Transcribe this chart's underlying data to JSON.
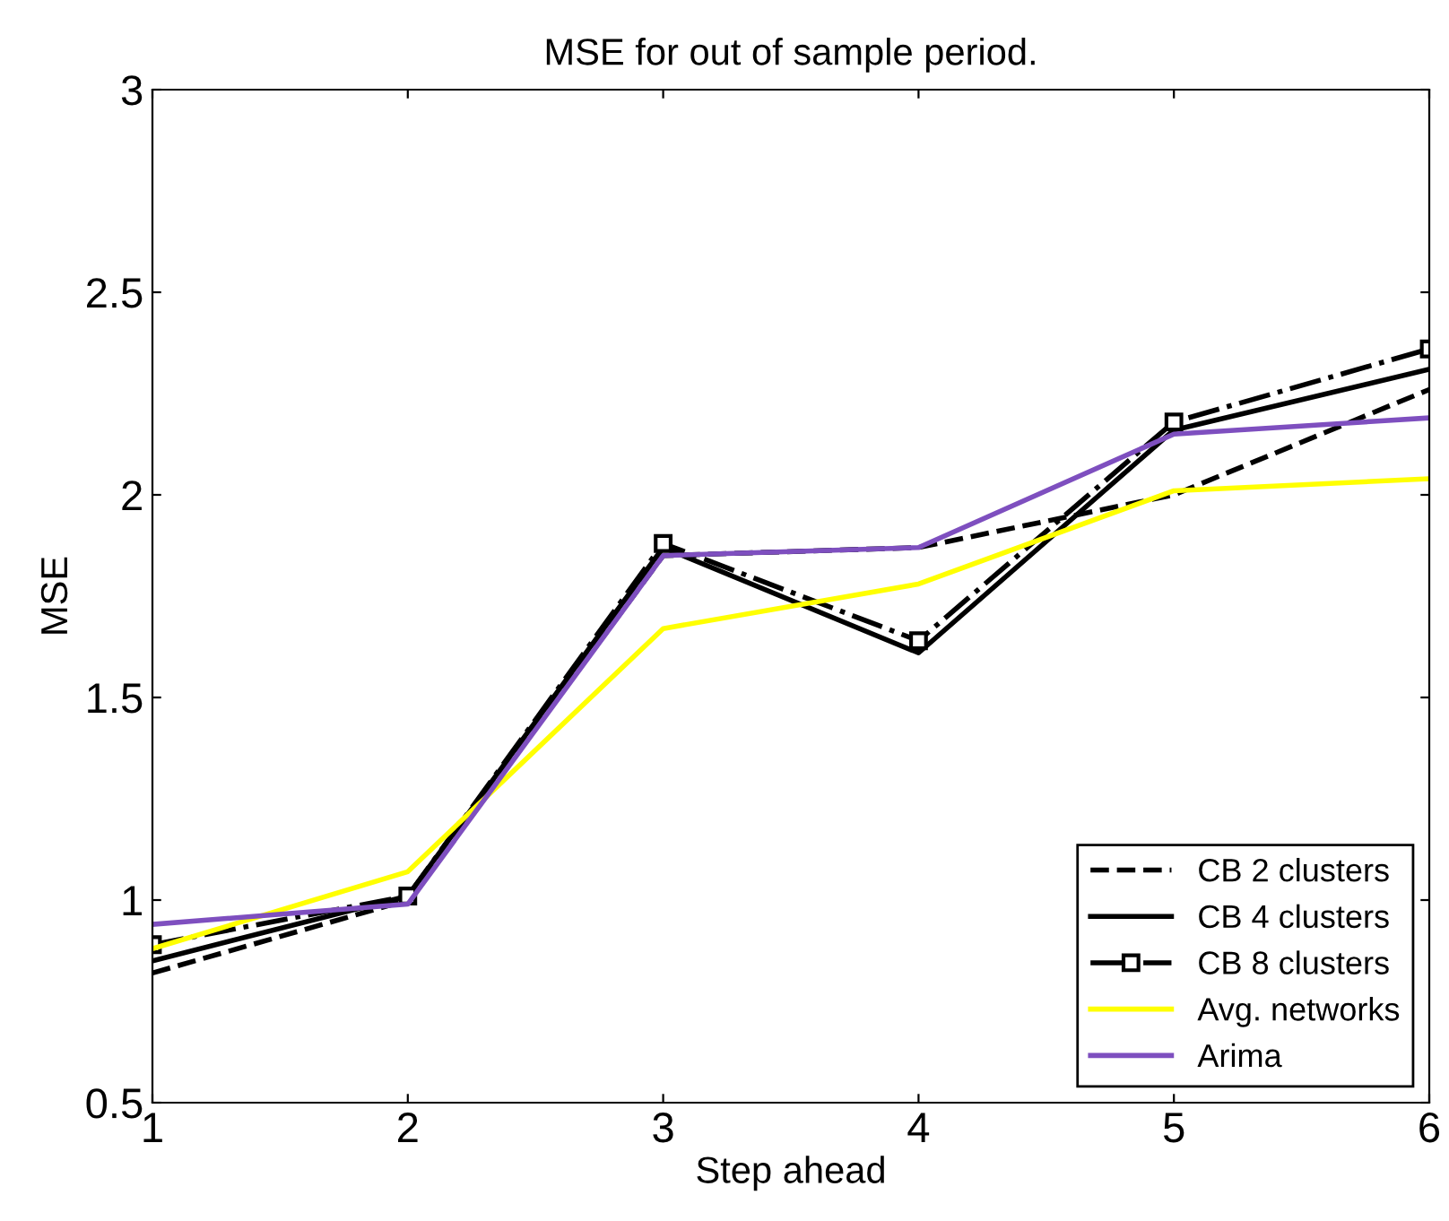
{
  "chart_data": {
    "type": "line",
    "title": "MSE for out of sample period.",
    "xlabel": "Step ahead",
    "ylabel": "MSE",
    "x": [
      1,
      2,
      3,
      4,
      5,
      6
    ],
    "series": [
      {
        "name": "CB 2 clusters",
        "color": "#000000",
        "line_style": "dashed",
        "values": [
          0.82,
          1.0,
          1.85,
          1.87,
          2.0,
          2.26
        ]
      },
      {
        "name": "CB 4 clusters",
        "color": "#000000",
        "line_style": "solid",
        "values": [
          0.85,
          1.01,
          1.87,
          1.61,
          2.16,
          2.31
        ]
      },
      {
        "name": "CB 8 clusters",
        "color": "#000000",
        "line_style": "dashdot",
        "marker": "square",
        "values": [
          0.89,
          1.01,
          1.88,
          1.64,
          2.18,
          2.36
        ]
      },
      {
        "name": "Avg. networks",
        "color": "#ffff00",
        "line_style": "solid",
        "values": [
          0.88,
          1.07,
          1.67,
          1.78,
          2.01,
          2.04
        ]
      },
      {
        "name": "Arima",
        "color": "#7e4fbf",
        "line_style": "solid",
        "values": [
          0.94,
          0.99,
          1.85,
          1.87,
          2.15,
          2.19
        ]
      }
    ],
    "xlim": [
      1,
      6
    ],
    "ylim": [
      0.5,
      3
    ],
    "xticks": [
      1,
      2,
      3,
      4,
      5,
      6
    ],
    "yticks": [
      {
        "value": 0.5,
        "label": "0.5"
      },
      1,
      {
        "value": 1.5,
        "label": "1.5"
      },
      2,
      {
        "value": 2.5,
        "label": "2.5"
      },
      3
    ],
    "grid": false,
    "legend": "bottom right"
  }
}
